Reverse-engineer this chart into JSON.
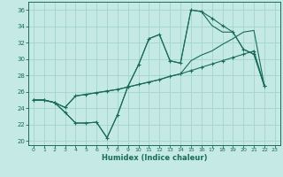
{
  "xlabel": "Humidex (Indice chaleur)",
  "bg_color": "#c5eae5",
  "grid_color": "#a0d5cc",
  "line_color": "#1a6b5a",
  "xlim": [
    -0.5,
    23.5
  ],
  "ylim": [
    19.5,
    37.0
  ],
  "xtick_vals": [
    0,
    1,
    2,
    3,
    4,
    5,
    6,
    7,
    8,
    9,
    10,
    11,
    12,
    13,
    14,
    15,
    16,
    17,
    18,
    19,
    20,
    21,
    22,
    23
  ],
  "ytick_vals": [
    20,
    22,
    24,
    26,
    28,
    30,
    32,
    34,
    36
  ],
  "curve1_x": [
    0,
    1,
    2,
    3,
    4,
    5,
    6,
    7,
    8,
    9,
    10,
    11,
    12,
    13,
    14,
    15,
    16,
    17,
    18,
    19,
    20,
    21,
    22
  ],
  "curve1_y": [
    25.0,
    25.0,
    24.7,
    23.5,
    22.2,
    22.2,
    22.3,
    20.4,
    23.2,
    26.7,
    29.3,
    32.5,
    33.0,
    29.8,
    29.5,
    36.0,
    35.8,
    35.0,
    34.1,
    33.3,
    31.2,
    30.6,
    26.7
  ],
  "curve2_x": [
    0,
    1,
    2,
    3,
    4,
    5,
    6,
    7,
    8,
    9,
    10,
    11,
    12,
    13,
    14,
    15,
    16,
    17,
    18,
    19,
    20,
    21,
    22
  ],
  "curve2_y": [
    25.0,
    25.0,
    24.7,
    23.5,
    22.2,
    22.2,
    22.3,
    20.4,
    23.2,
    26.7,
    29.3,
    32.5,
    33.0,
    29.8,
    29.5,
    36.0,
    35.8,
    34.1,
    33.3,
    33.3,
    31.2,
    30.6,
    26.7
  ],
  "curve3_x": [
    0,
    1,
    2,
    3,
    4,
    5,
    6,
    7,
    8,
    9,
    10,
    11,
    12,
    13,
    14,
    15,
    16,
    17,
    18,
    19,
    20,
    21,
    22
  ],
  "curve3_y": [
    25.0,
    25.0,
    24.7,
    24.1,
    25.5,
    25.7,
    25.9,
    26.1,
    26.3,
    26.6,
    26.9,
    27.2,
    27.5,
    27.9,
    28.2,
    28.6,
    29.0,
    29.4,
    29.8,
    30.2,
    30.6,
    31.0,
    26.7
  ],
  "curve4_x": [
    0,
    1,
    2,
    3,
    4,
    5,
    6,
    7,
    8,
    9,
    10,
    11,
    12,
    13,
    14,
    15,
    16,
    17,
    18,
    19,
    20,
    21,
    22
  ],
  "curve4_y": [
    25.0,
    25.0,
    24.7,
    24.1,
    25.5,
    25.7,
    25.9,
    26.1,
    26.3,
    26.6,
    26.9,
    27.2,
    27.5,
    27.9,
    28.2,
    29.8,
    30.5,
    31.0,
    31.8,
    32.5,
    33.3,
    33.5,
    26.7
  ]
}
